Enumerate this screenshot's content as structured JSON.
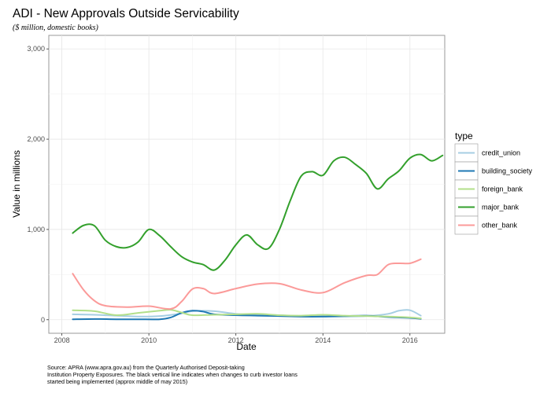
{
  "chart_data": {
    "type": "line",
    "title": "ADI - New Approvals Outside Servicability",
    "subtitle": "($ million, domestic books)",
    "xlabel": "Date",
    "ylabel": "Value in millions",
    "xlim": [
      2007.7,
      2016.8
    ],
    "ylim": [
      -150,
      3150
    ],
    "x_ticks": [
      2008,
      2010,
      2012,
      2014,
      2016
    ],
    "x_tick_labels": [
      "2008",
      "2010",
      "2012",
      "2014",
      "2016"
    ],
    "y_ticks": [
      0,
      1000,
      2000,
      3000
    ],
    "y_tick_labels": [
      "0",
      "1,000",
      "2,000",
      "3,000"
    ],
    "grid": true,
    "legend": {
      "title": "type",
      "position": "right"
    },
    "source_lines": [
      "Source: APRA (www.apra.gov.au) from the Quarterly Authorised Deposit-taking",
      "Institution Property Exposures. The black vertical line indicates when changes to curb investor loans",
      "started being implemented (approx middle of may 2015)"
    ],
    "series": [
      {
        "name": "credit_union",
        "color": "#a6cee3",
        "points": [
          [
            2008.25,
            60
          ],
          [
            2008.75,
            55
          ],
          [
            2009.25,
            45
          ],
          [
            2009.75,
            35
          ],
          [
            2010.25,
            40
          ],
          [
            2010.75,
            70
          ],
          [
            2011.0,
            95
          ],
          [
            2011.5,
            95
          ],
          [
            2012.0,
            65
          ],
          [
            2012.5,
            55
          ],
          [
            2013.0,
            50
          ],
          [
            2013.5,
            35
          ],
          [
            2014.0,
            35
          ],
          [
            2014.5,
            35
          ],
          [
            2015.0,
            40
          ],
          [
            2015.5,
            65
          ],
          [
            2015.75,
            100
          ],
          [
            2016.0,
            105
          ],
          [
            2016.25,
            45
          ]
        ]
      },
      {
        "name": "building_society",
        "color": "#1f78b4",
        "points": [
          [
            2008.25,
            5
          ],
          [
            2008.75,
            8
          ],
          [
            2009.25,
            5
          ],
          [
            2009.75,
            5
          ],
          [
            2010.25,
            5
          ],
          [
            2010.5,
            25
          ],
          [
            2010.75,
            75
          ],
          [
            2011.0,
            100
          ],
          [
            2011.25,
            90
          ],
          [
            2011.5,
            60
          ],
          [
            2012.0,
            50
          ],
          [
            2012.5,
            45
          ],
          [
            2013.0,
            40
          ],
          [
            2013.5,
            35
          ],
          [
            2014.0,
            35
          ],
          [
            2014.5,
            40
          ],
          [
            2015.0,
            45
          ],
          [
            2015.5,
            30
          ],
          [
            2016.0,
            20
          ],
          [
            2016.25,
            10
          ]
        ]
      },
      {
        "name": "foreign_bank",
        "color": "#b2df8a",
        "points": [
          [
            2008.25,
            105
          ],
          [
            2008.75,
            95
          ],
          [
            2009.25,
            50
          ],
          [
            2009.75,
            75
          ],
          [
            2010.25,
            100
          ],
          [
            2010.5,
            110
          ],
          [
            2010.75,
            80
          ],
          [
            2011.0,
            50
          ],
          [
            2011.5,
            55
          ],
          [
            2012.0,
            60
          ],
          [
            2012.5,
            65
          ],
          [
            2013.0,
            50
          ],
          [
            2013.5,
            45
          ],
          [
            2014.0,
            55
          ],
          [
            2014.5,
            45
          ],
          [
            2015.0,
            40
          ],
          [
            2015.5,
            35
          ],
          [
            2016.0,
            25
          ],
          [
            2016.25,
            15
          ]
        ]
      },
      {
        "name": "major_bank",
        "color": "#33a02c",
        "points": [
          [
            2008.25,
            960
          ],
          [
            2008.5,
            1045
          ],
          [
            2008.75,
            1040
          ],
          [
            2009.0,
            880
          ],
          [
            2009.25,
            810
          ],
          [
            2009.5,
            800
          ],
          [
            2009.75,
            860
          ],
          [
            2010.0,
            1000
          ],
          [
            2010.25,
            930
          ],
          [
            2010.5,
            810
          ],
          [
            2010.75,
            700
          ],
          [
            2011.0,
            640
          ],
          [
            2011.25,
            610
          ],
          [
            2011.5,
            550
          ],
          [
            2011.75,
            660
          ],
          [
            2012.0,
            830
          ],
          [
            2012.25,
            940
          ],
          [
            2012.5,
            830
          ],
          [
            2012.75,
            790
          ],
          [
            2013.0,
            1000
          ],
          [
            2013.25,
            1320
          ],
          [
            2013.5,
            1590
          ],
          [
            2013.75,
            1640
          ],
          [
            2014.0,
            1600
          ],
          [
            2014.25,
            1760
          ],
          [
            2014.5,
            1800
          ],
          [
            2014.75,
            1720
          ],
          [
            2015.0,
            1620
          ],
          [
            2015.25,
            1450
          ],
          [
            2015.5,
            1560
          ],
          [
            2015.75,
            1650
          ],
          [
            2016.0,
            1790
          ],
          [
            2016.25,
            1830
          ],
          [
            2016.5,
            1760
          ],
          [
            2016.75,
            1820
          ]
        ]
      },
      {
        "name": "other_bank",
        "color": "#fb9a99",
        "points": [
          [
            2008.25,
            510
          ],
          [
            2008.5,
            330
          ],
          [
            2008.75,
            210
          ],
          [
            2009.0,
            155
          ],
          [
            2009.5,
            140
          ],
          [
            2010.0,
            150
          ],
          [
            2010.5,
            120
          ],
          [
            2010.75,
            200
          ],
          [
            2011.0,
            340
          ],
          [
            2011.25,
            345
          ],
          [
            2011.5,
            290
          ],
          [
            2012.0,
            345
          ],
          [
            2012.5,
            395
          ],
          [
            2013.0,
            400
          ],
          [
            2013.5,
            330
          ],
          [
            2014.0,
            300
          ],
          [
            2014.5,
            410
          ],
          [
            2015.0,
            490
          ],
          [
            2015.25,
            500
          ],
          [
            2015.5,
            610
          ],
          [
            2015.75,
            625
          ],
          [
            2016.0,
            625
          ],
          [
            2016.25,
            670
          ]
        ]
      }
    ]
  }
}
